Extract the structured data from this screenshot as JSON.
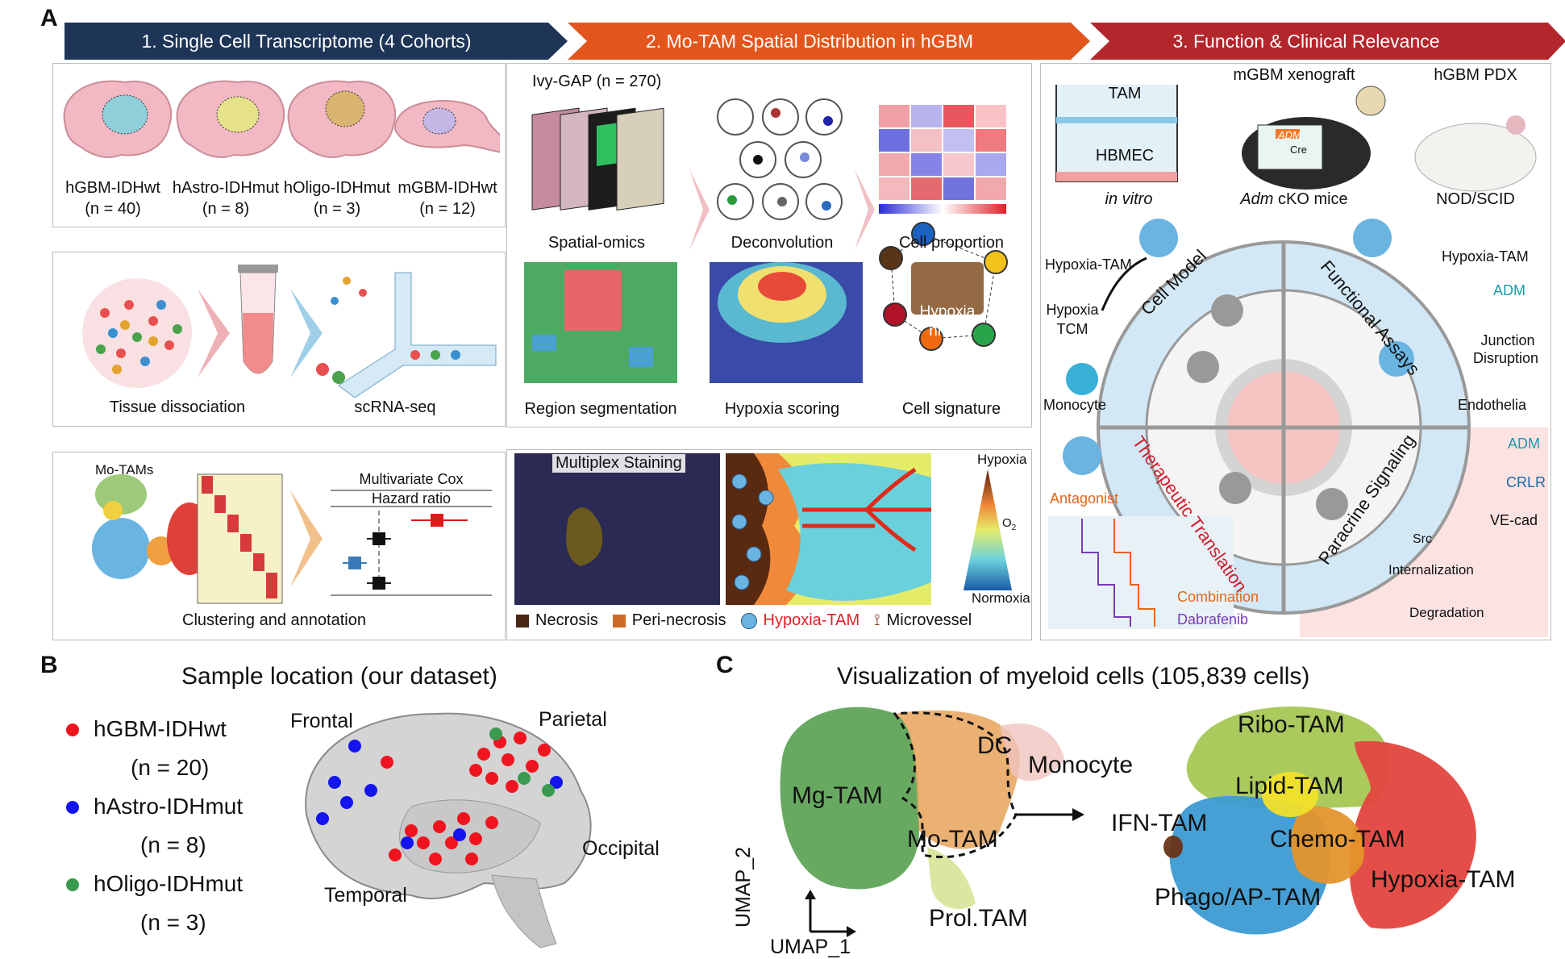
{
  "colors": {
    "banner1": "#1e3557",
    "banner2": "#e2561d",
    "banner3": "#b3262c",
    "brain_pink": "#f2b9c4",
    "necrosis": "#4a2614",
    "peri_necrosis": "#cf6b27",
    "hypoxia_red": "#e0202a",
    "mg_green": "#4e9a46",
    "mo_orange": "#e6a35a",
    "umap_blue": "#3d8fcf"
  },
  "panelA": {
    "letter": "A",
    "banners": [
      {
        "label": "1. Single Cell Transcriptome  (4 Cohorts)"
      },
      {
        "label": "2. Mo-TAM Spatial Distribution in hGBM"
      },
      {
        "label": "3. Function & Clinical Relevance"
      }
    ],
    "cohorts": [
      {
        "name": "hGBM-IDHwt",
        "n": "(n = 40)"
      },
      {
        "name": "hAstro-IDHmut",
        "n": "(n = 8)"
      },
      {
        "name": "hOligo-IDHmut",
        "n": "(n = 3)"
      },
      {
        "name": "mGBM-IDHwt",
        "n": "(n = 12)"
      }
    ],
    "workflow": {
      "tissue": "Tissue dissociation",
      "scrna": "scRNA-seq"
    },
    "cluster": {
      "motams": "Mo-TAMs",
      "cox_title": "Multivariate Cox",
      "hazard": "Hazard ratio",
      "caption": "Clustering and annotation"
    },
    "spatial": {
      "ivy": "Ivy-GAP (n = 270)",
      "spatial_omics": "Spatial-omics",
      "deconvolution": "Deconvolution",
      "cell_proportion": "Cell proportion",
      "region_seg": "Region segmentation",
      "hypoxia_scoring": "Hypoxia scoring",
      "cell_signature": "Cell signature",
      "niche": [
        "Hypoxia",
        "niche"
      ]
    },
    "staining": {
      "label": "Multiplex Staining",
      "scale_top": "Hypoxia",
      "scale_mid": "O",
      "scale_mid_sub": "2",
      "scale_bottom": "Normoxia",
      "legend": [
        {
          "label": "Necrosis"
        },
        {
          "label": "Peri-necrosis"
        },
        {
          "label": "Hypoxia-TAM"
        },
        {
          "label": "Microvessel"
        }
      ]
    },
    "function": {
      "tam": "TAM",
      "hbmec": "HBMEC",
      "invitro": "in vitro",
      "xenograft": "mGBM xenograft",
      "adm_gene": "ADM",
      "cre": "Cre",
      "adm_ital": "Adm",
      "cko": " cKO mice",
      "pdx": "hGBM PDX",
      "nod": "NOD/SCID",
      "hypoxia_tam_left": "Hypoxia-TAM",
      "hypoxia_tcm": [
        "Hypoxia",
        "TCM"
      ],
      "monocyte": "Monocyte",
      "hypoxia_tam_right": "Hypoxia-TAM",
      "adm_right": "ADM",
      "junction": [
        "Junction",
        "Disruption"
      ],
      "endothelia": "Endothelia",
      "ring_labels": [
        "Cell Model",
        "Functional Assays",
        "Therapeutic Translation",
        "Paracrine Signaling"
      ],
      "antagonist": "Antagonist",
      "combination": "Combination",
      "dabrafenib": "Dabrafenib",
      "adm_para": "ADM",
      "crlr": "CRLR",
      "vecad": "VE-cad",
      "src": "Src",
      "internalization": "Internalization",
      "degradation": "Degradation"
    }
  },
  "panelB": {
    "letter": "B",
    "title": "Sample location (our dataset)",
    "legend": [
      {
        "name": "hGBM-IDHwt",
        "n": "(n = 20)"
      },
      {
        "name": "hAstro-IDHmut",
        "n": "(n = 8)"
      },
      {
        "name": "hOligo-IDHmut",
        "n": "(n = 3)"
      }
    ],
    "lobes": {
      "frontal": "Frontal",
      "parietal": "Parietal",
      "occipital": "Occipital",
      "temporal": "Temporal"
    }
  },
  "panelC": {
    "letter": "C",
    "title": "Visualization of myeloid cells (105,839 cells)",
    "axis_x": "UMAP_1",
    "axis_y": "UMAP_2",
    "left_clusters": {
      "mg": "Mg-TAM",
      "mo": "Mo-TAM",
      "dc": "DC",
      "monocyte": "Monocyte",
      "prol": "Prol.TAM"
    },
    "right_clusters": {
      "ribo": "Ribo-TAM",
      "lipid": "Lipid-TAM",
      "ifn": "IFN-TAM",
      "chemo": "Chemo-TAM",
      "phago": "Phago/AP-TAM",
      "hypoxia": "Hypoxia-TAM"
    }
  }
}
